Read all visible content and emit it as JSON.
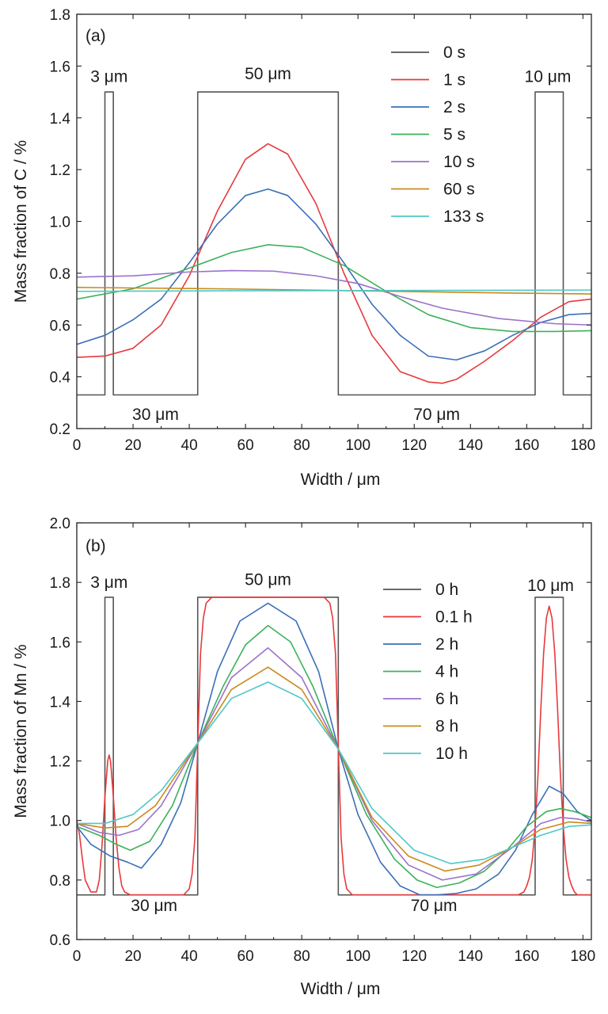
{
  "chart_data": [
    {
      "type": "line",
      "panel_label": "(a)",
      "xlabel": "Width / μm",
      "ylabel": "Mass fraction of C / %",
      "xlim": [
        0,
        183
      ],
      "ylim": [
        0.2,
        1.8
      ],
      "x_ticks": [
        "0",
        "20",
        "40",
        "60",
        "80",
        "100",
        "120",
        "140",
        "160",
        "180"
      ],
      "y_ticks": [
        "0.2",
        "0.4",
        "0.6",
        "0.8",
        "1.0",
        "1.2",
        "1.4",
        "1.6",
        "1.8"
      ],
      "legend_position": "top-right",
      "annotations": [
        {
          "text": "3 μm",
          "x": 11.5,
          "y": 1.56
        },
        {
          "text": "50 μm",
          "x": 68,
          "y": 1.57
        },
        {
          "text": "10 μm",
          "x": 167.5,
          "y": 1.56
        },
        {
          "text": "30 μm",
          "x": 28,
          "y": 0.255
        },
        {
          "text": "70 μm",
          "x": 128,
          "y": 0.255
        }
      ],
      "series": [
        {
          "name": "0 s",
          "color": "#555555",
          "x": [
            0,
            10,
            10,
            13,
            13,
            43,
            43,
            93,
            93,
            163,
            163,
            173,
            173,
            183
          ],
          "y": [
            0.33,
            0.33,
            1.5,
            1.5,
            0.33,
            0.33,
            1.5,
            1.5,
            0.33,
            0.33,
            1.5,
            1.5,
            0.33,
            0.33
          ]
        },
        {
          "name": "1 s",
          "color": "#e8393b",
          "x": [
            0,
            10,
            20,
            30,
            40,
            50,
            60,
            68,
            75,
            85,
            95,
            105,
            115,
            125,
            130,
            135,
            145,
            155,
            165,
            175,
            183
          ],
          "y": [
            0.475,
            0.48,
            0.51,
            0.6,
            0.79,
            1.04,
            1.24,
            1.3,
            1.26,
            1.07,
            0.8,
            0.56,
            0.42,
            0.38,
            0.375,
            0.39,
            0.46,
            0.54,
            0.63,
            0.69,
            0.7
          ]
        },
        {
          "name": "2 s",
          "color": "#3a6fb7",
          "x": [
            0,
            10,
            20,
            30,
            40,
            50,
            60,
            68,
            75,
            85,
            95,
            105,
            115,
            125,
            135,
            145,
            155,
            165,
            175,
            183
          ],
          "y": [
            0.525,
            0.56,
            0.62,
            0.7,
            0.84,
            0.99,
            1.1,
            1.125,
            1.1,
            0.99,
            0.84,
            0.68,
            0.56,
            0.48,
            0.465,
            0.5,
            0.56,
            0.61,
            0.64,
            0.645
          ]
        },
        {
          "name": "5 s",
          "color": "#3bb25a",
          "x": [
            0,
            20,
            40,
            55,
            68,
            80,
            95,
            110,
            125,
            140,
            155,
            170,
            183
          ],
          "y": [
            0.7,
            0.74,
            0.82,
            0.88,
            0.91,
            0.9,
            0.83,
            0.73,
            0.64,
            0.59,
            0.575,
            0.575,
            0.578
          ]
        },
        {
          "name": "10 s",
          "color": "#9b72c9",
          "x": [
            0,
            20,
            40,
            55,
            70,
            85,
            100,
            115,
            130,
            150,
            170,
            183
          ],
          "y": [
            0.785,
            0.79,
            0.805,
            0.81,
            0.808,
            0.79,
            0.76,
            0.71,
            0.665,
            0.625,
            0.605,
            0.6
          ]
        },
        {
          "name": "60 s",
          "color": "#c98a1c",
          "x": [
            0,
            50,
            100,
            150,
            183
          ],
          "y": [
            0.745,
            0.74,
            0.732,
            0.724,
            0.72
          ]
        },
        {
          "name": "133 s",
          "color": "#4ec8c8",
          "x": [
            0,
            50,
            100,
            150,
            183
          ],
          "y": [
            0.73,
            0.732,
            0.733,
            0.734,
            0.735
          ]
        }
      ]
    },
    {
      "type": "line",
      "panel_label": "(b)",
      "xlabel": "Width / μm",
      "ylabel": "Mass fraction of Mn / %",
      "xlim": [
        0,
        183
      ],
      "ylim": [
        0.6,
        2.0
      ],
      "x_ticks": [
        "0",
        "20",
        "40",
        "60",
        "80",
        "100",
        "120",
        "140",
        "160",
        "180"
      ],
      "y_ticks": [
        "0.6",
        "0.8",
        "1.0",
        "1.2",
        "1.4",
        "1.6",
        "1.8",
        "2.0"
      ],
      "legend_position": "top-right",
      "annotations": [
        {
          "text": "3 μm",
          "x": 11.5,
          "y": 1.8
        },
        {
          "text": "50 μm",
          "x": 68,
          "y": 1.81
        },
        {
          "text": "10 μm",
          "x": 168.5,
          "y": 1.79
        },
        {
          "text": "30 μm",
          "x": 27.5,
          "y": 0.715
        },
        {
          "text": "70 μm",
          "x": 127,
          "y": 0.715
        }
      ],
      "series": [
        {
          "name": "0 h",
          "color": "#555555",
          "x": [
            0,
            10,
            10,
            13,
            13,
            43,
            43,
            93,
            93,
            163,
            163,
            173,
            173,
            183
          ],
          "y": [
            0.75,
            0.75,
            1.75,
            1.75,
            0.75,
            0.75,
            1.75,
            1.75,
            0.75,
            0.75,
            1.75,
            1.75,
            0.75,
            0.75
          ]
        },
        {
          "name": "0.1 h",
          "color": "#e8393b",
          "x": [
            0,
            1,
            2,
            3,
            5,
            7,
            8,
            9,
            10,
            11,
            11.5,
            12,
            13,
            14,
            15,
            16,
            17,
            19,
            21,
            38,
            40,
            41,
            42,
            43,
            44,
            45,
            46,
            48,
            50,
            86,
            88,
            90,
            91,
            92,
            93,
            94,
            95,
            96,
            98,
            100,
            157,
            159,
            160,
            161,
            162,
            163,
            164,
            165,
            166,
            167,
            168,
            169,
            170,
            171,
            172,
            173,
            174,
            175,
            176,
            177,
            178,
            180,
            183
          ],
          "y": [
            1.0,
            0.95,
            0.87,
            0.8,
            0.76,
            0.76,
            0.8,
            0.92,
            1.08,
            1.2,
            1.22,
            1.2,
            1.08,
            0.94,
            0.84,
            0.78,
            0.76,
            0.75,
            0.75,
            0.75,
            0.77,
            0.82,
            0.94,
            1.25,
            1.56,
            1.68,
            1.73,
            1.75,
            1.75,
            1.75,
            1.75,
            1.73,
            1.68,
            1.56,
            1.25,
            0.94,
            0.82,
            0.77,
            0.75,
            0.75,
            0.75,
            0.76,
            0.78,
            0.81,
            0.87,
            0.98,
            1.15,
            1.37,
            1.56,
            1.68,
            1.72,
            1.68,
            1.56,
            1.37,
            1.15,
            0.98,
            0.87,
            0.81,
            0.78,
            0.76,
            0.75,
            0.75,
            0.75
          ]
        },
        {
          "name": "2 h",
          "color": "#3a6fb7",
          "x": [
            0,
            5,
            12,
            18,
            23,
            30,
            37,
            43,
            50,
            58,
            68,
            78,
            86,
            93,
            100,
            108,
            115,
            122,
            128,
            135,
            142,
            150,
            156,
            162,
            168,
            173,
            178,
            183
          ],
          "y": [
            0.98,
            0.92,
            0.88,
            0.86,
            0.84,
            0.92,
            1.06,
            1.26,
            1.5,
            1.67,
            1.73,
            1.67,
            1.5,
            1.24,
            1.02,
            0.86,
            0.78,
            0.75,
            0.75,
            0.755,
            0.77,
            0.82,
            0.9,
            1.02,
            1.115,
            1.09,
            1.03,
            1.0
          ]
        },
        {
          "name": "4 h",
          "color": "#3bb25a",
          "x": [
            0,
            8,
            14,
            19,
            26,
            34,
            43,
            52,
            60,
            68,
            76,
            84,
            93,
            103,
            113,
            121,
            128,
            136,
            145,
            153,
            160,
            167,
            172,
            177,
            183
          ],
          "y": [
            0.98,
            0.95,
            0.92,
            0.9,
            0.93,
            1.05,
            1.26,
            1.45,
            1.59,
            1.655,
            1.6,
            1.45,
            1.24,
            1.02,
            0.87,
            0.8,
            0.775,
            0.79,
            0.83,
            0.9,
            0.98,
            1.03,
            1.04,
            1.03,
            1.01
          ]
        },
        {
          "name": "6 h",
          "color": "#9b72c9",
          "x": [
            0,
            8,
            15,
            22,
            30,
            43,
            55,
            68,
            80,
            93,
            105,
            118,
            130,
            142,
            155,
            165,
            172,
            178,
            183
          ],
          "y": [
            0.99,
            0.96,
            0.95,
            0.97,
            1.05,
            1.26,
            1.48,
            1.58,
            1.48,
            1.24,
            1.0,
            0.85,
            0.8,
            0.82,
            0.91,
            0.99,
            1.01,
            1.005,
            0.995
          ]
        },
        {
          "name": "8 h",
          "color": "#c98a1c",
          "x": [
            0,
            10,
            18,
            28,
            43,
            55,
            68,
            80,
            93,
            105,
            118,
            131,
            143,
            155,
            165,
            175,
            183
          ],
          "y": [
            0.99,
            0.975,
            0.98,
            1.05,
            1.26,
            1.44,
            1.515,
            1.44,
            1.24,
            1.01,
            0.88,
            0.83,
            0.85,
            0.91,
            0.97,
            0.995,
            0.99
          ]
        },
        {
          "name": "10 h",
          "color": "#4ec8c8",
          "x": [
            0,
            10,
            20,
            30,
            43,
            55,
            68,
            80,
            93,
            105,
            120,
            133,
            145,
            155,
            165,
            175,
            183
          ],
          "y": [
            0.99,
            0.99,
            1.02,
            1.1,
            1.26,
            1.41,
            1.465,
            1.41,
            1.24,
            1.04,
            0.9,
            0.855,
            0.87,
            0.91,
            0.95,
            0.98,
            0.985
          ]
        }
      ]
    }
  ]
}
